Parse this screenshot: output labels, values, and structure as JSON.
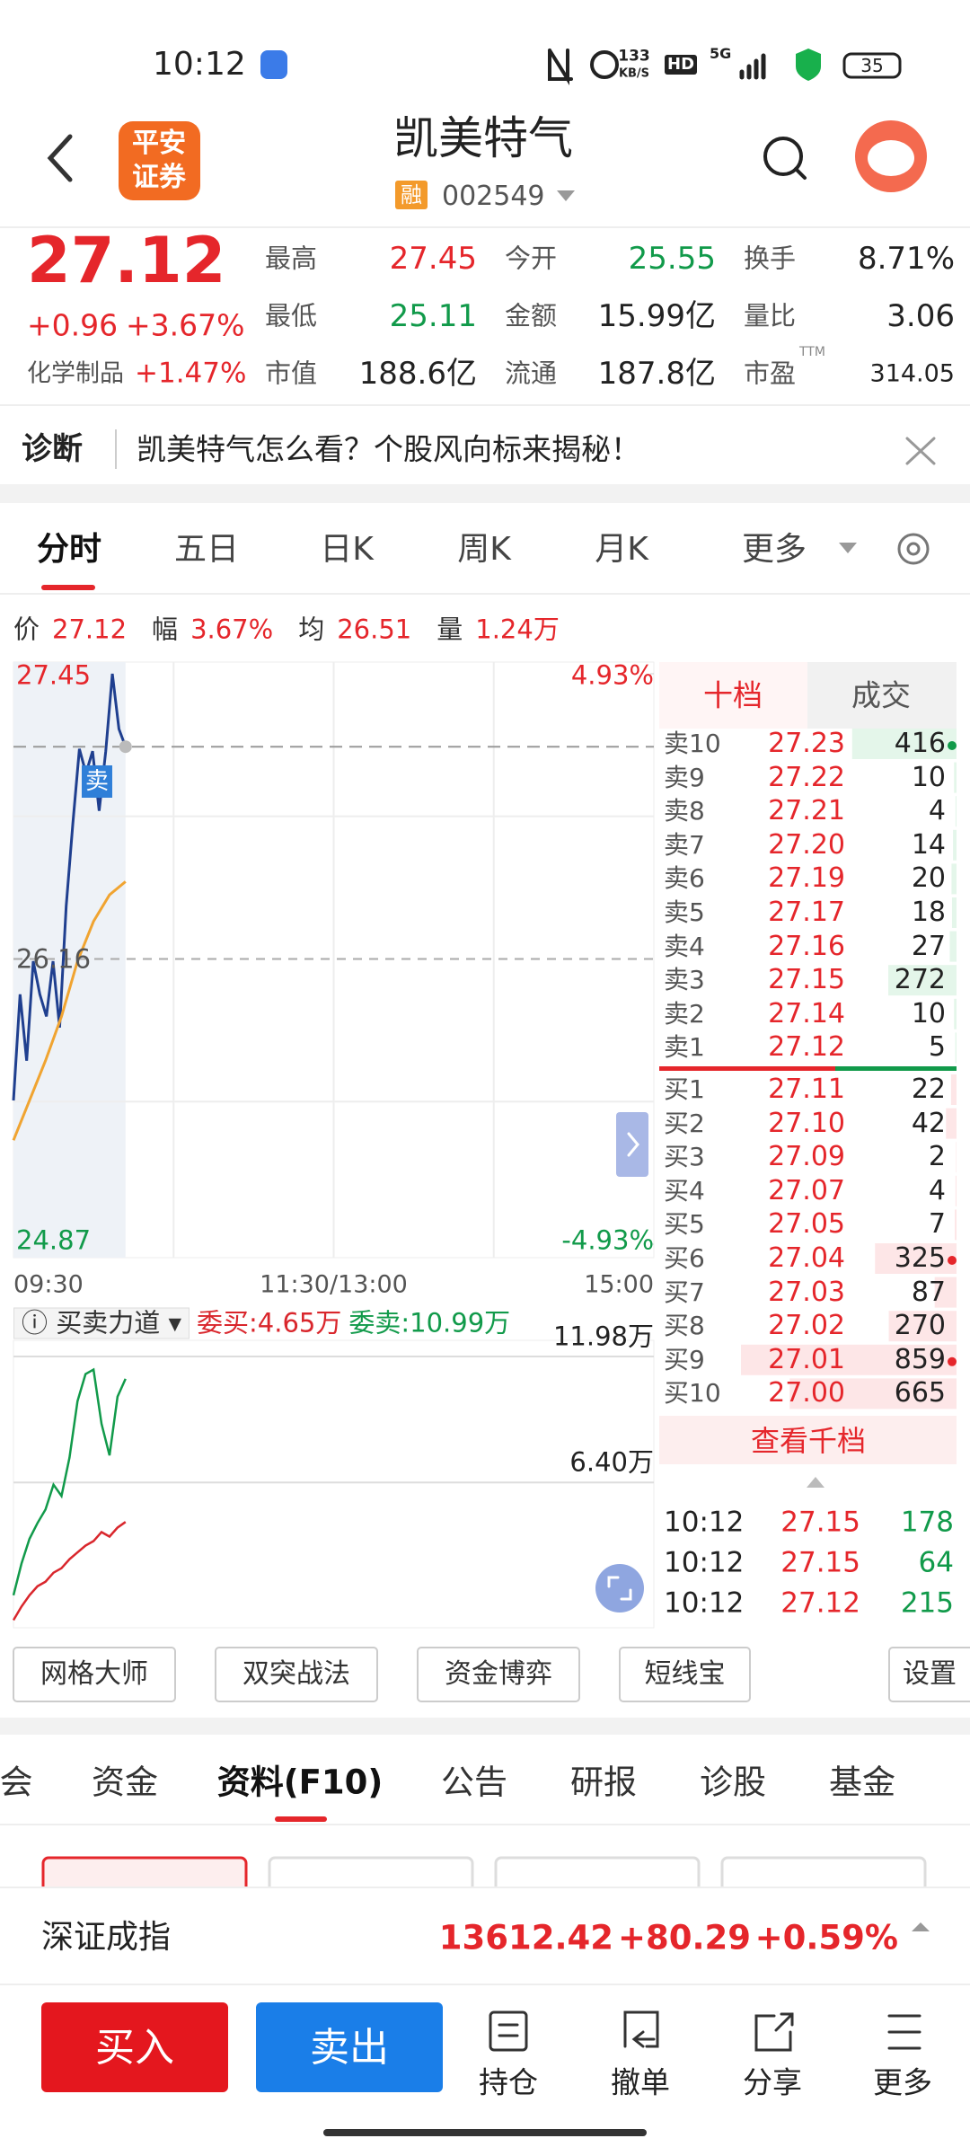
{
  "status": {
    "time": "10:12",
    "net_speed": "133",
    "net_unit": "KB/S",
    "hd": "HD",
    "network": "5G",
    "battery": "35"
  },
  "header": {
    "logo": [
      "平安",
      "证券"
    ],
    "title": "凯美特气",
    "tag": "融",
    "code": "002549"
  },
  "quote": {
    "price": "27.12",
    "change": "+0.96",
    "change_pct": "+3.67%",
    "sector": "化学制品",
    "sector_pct": "+1.47%",
    "stats": [
      [
        {
          "label": "最高",
          "value": "27.45",
          "tone": "up"
        },
        {
          "label": "今开",
          "value": "25.55",
          "tone": "down"
        },
        {
          "label": "换手",
          "value": "8.71%"
        }
      ],
      [
        {
          "label": "最低",
          "value": "25.11",
          "tone": "down"
        },
        {
          "label": "金额",
          "value": "15.99亿"
        },
        {
          "label": "量比",
          "value": "3.06"
        }
      ],
      [
        {
          "label": "市值",
          "value": "188.6亿"
        },
        {
          "label": "流通",
          "value": "187.8亿"
        },
        {
          "label": "市盈",
          "sup": "TTM",
          "value": "314.05"
        }
      ]
    ]
  },
  "diagnosis": {
    "label": "诊断",
    "text": "凯美特气怎么看？个股风向标来揭秘！"
  },
  "tabs": [
    "分时",
    "五日",
    "日K",
    "周K",
    "月K",
    "更多"
  ],
  "info": [
    {
      "label": "价",
      "value": "27.12"
    },
    {
      "label": "幅",
      "value": "3.67%"
    },
    {
      "label": "均",
      "value": "26.51"
    },
    {
      "label": "量",
      "value": "1.24万"
    }
  ],
  "chart_data": [
    {
      "type": "line",
      "ylim": [
        24.87,
        27.45
      ],
      "yticks": [
        27.45,
        26.16,
        24.87
      ],
      "y2lim": [
        -4.93,
        4.93
      ],
      "y2ticks": [
        {
          "value": 4.93,
          "label": "4.93%"
        },
        {
          "value": -4.93,
          "label": "-4.93%"
        }
      ],
      "time_labels": [
        "09:30",
        "11:30/13:00",
        "15:00"
      ],
      "marker": "卖",
      "series": [
        {
          "color": "#1f3f8f",
          "values": [
            25.52,
            26.0,
            25.7,
            26.15,
            26.0,
            25.9,
            26.15,
            25.85,
            26.4,
            26.77,
            27.11,
            27.0,
            27.1,
            26.83,
            27.1,
            27.45,
            27.2,
            27.12
          ]
        },
        {
          "color": "#f0a431",
          "values": [
            25.34,
            25.52,
            25.7,
            25.9,
            26.15,
            26.33,
            26.45,
            26.51
          ]
        }
      ]
    },
    {
      "type": "line",
      "title": "买卖力道",
      "ylim": [
        0,
        11.98
      ],
      "yticks": [
        {
          "value": 11.98,
          "label": "11.98万"
        },
        {
          "value": 6.4,
          "label": "6.40万"
        }
      ],
      "series": [
        {
          "name": "委买:4.65万",
          "color": "#d9262c",
          "values": [
            0.3,
            0.9,
            1.4,
            1.8,
            2.0,
            2.4,
            2.6,
            3.0,
            3.3,
            3.6,
            3.8,
            4.2,
            4.0,
            4.4,
            4.65
          ]
        },
        {
          "name": "委卖:10.99万",
          "color": "#119a4a",
          "values": [
            1.4,
            2.8,
            3.9,
            4.6,
            5.2,
            6.3,
            5.8,
            7.5,
            10.0,
            11.2,
            11.4,
            9.0,
            7.6,
            10.2,
            10.99
          ]
        }
      ]
    }
  ],
  "orderbook": {
    "tabs": [
      "十档",
      "成交"
    ],
    "asks": [
      {
        "label": "卖10",
        "price": "27.23",
        "volume": 416,
        "dot": true
      },
      {
        "label": "卖9",
        "price": "27.22",
        "volume": 10
      },
      {
        "label": "卖8",
        "price": "27.21",
        "volume": 4
      },
      {
        "label": "卖7",
        "price": "27.20",
        "volume": 14
      },
      {
        "label": "卖6",
        "price": "27.19",
        "volume": 20
      },
      {
        "label": "卖5",
        "price": "27.17",
        "volume": 18
      },
      {
        "label": "卖4",
        "price": "27.16",
        "volume": 27
      },
      {
        "label": "卖3",
        "price": "27.15",
        "volume": 272
      },
      {
        "label": "卖2",
        "price": "27.14",
        "volume": 10
      },
      {
        "label": "卖1",
        "price": "27.12",
        "volume": 5
      }
    ],
    "bids": [
      {
        "label": "买1",
        "price": "27.11",
        "volume": 22
      },
      {
        "label": "买2",
        "price": "27.10",
        "volume": 42
      },
      {
        "label": "买3",
        "price": "27.09",
        "volume": 2
      },
      {
        "label": "买4",
        "price": "27.07",
        "volume": 4
      },
      {
        "label": "买5",
        "price": "27.05",
        "volume": 7
      },
      {
        "label": "买6",
        "price": "27.04",
        "volume": 325,
        "dot": true
      },
      {
        "label": "买7",
        "price": "27.03",
        "volume": 87
      },
      {
        "label": "买8",
        "price": "27.02",
        "volume": 270
      },
      {
        "label": "买9",
        "price": "27.01",
        "volume": 859,
        "dot": true
      },
      {
        "label": "买10",
        "price": "27.00",
        "volume": 665
      }
    ],
    "more": "查看千档",
    "trades": [
      {
        "time": "10:12",
        "price": "27.15",
        "volume": "178"
      },
      {
        "time": "10:12",
        "price": "27.15",
        "volume": "64"
      },
      {
        "time": "10:12",
        "price": "27.12",
        "volume": "215"
      }
    ]
  },
  "tools": [
    "网格大师",
    "双突战法",
    "资金博弈",
    "短线宝"
  ],
  "settings": "设置",
  "subtabs": [
    "会",
    "资金",
    "资料(F10)",
    "公告",
    "研报",
    "诊股",
    "基金"
  ],
  "index": {
    "name": "深证成指",
    "value": "13612.42",
    "change": "+80.29",
    "pct": "+0.59%"
  },
  "actions": {
    "buy": "买入",
    "sell": "卖出",
    "items": [
      "持仓",
      "撤单",
      "分享",
      "更多"
    ]
  }
}
